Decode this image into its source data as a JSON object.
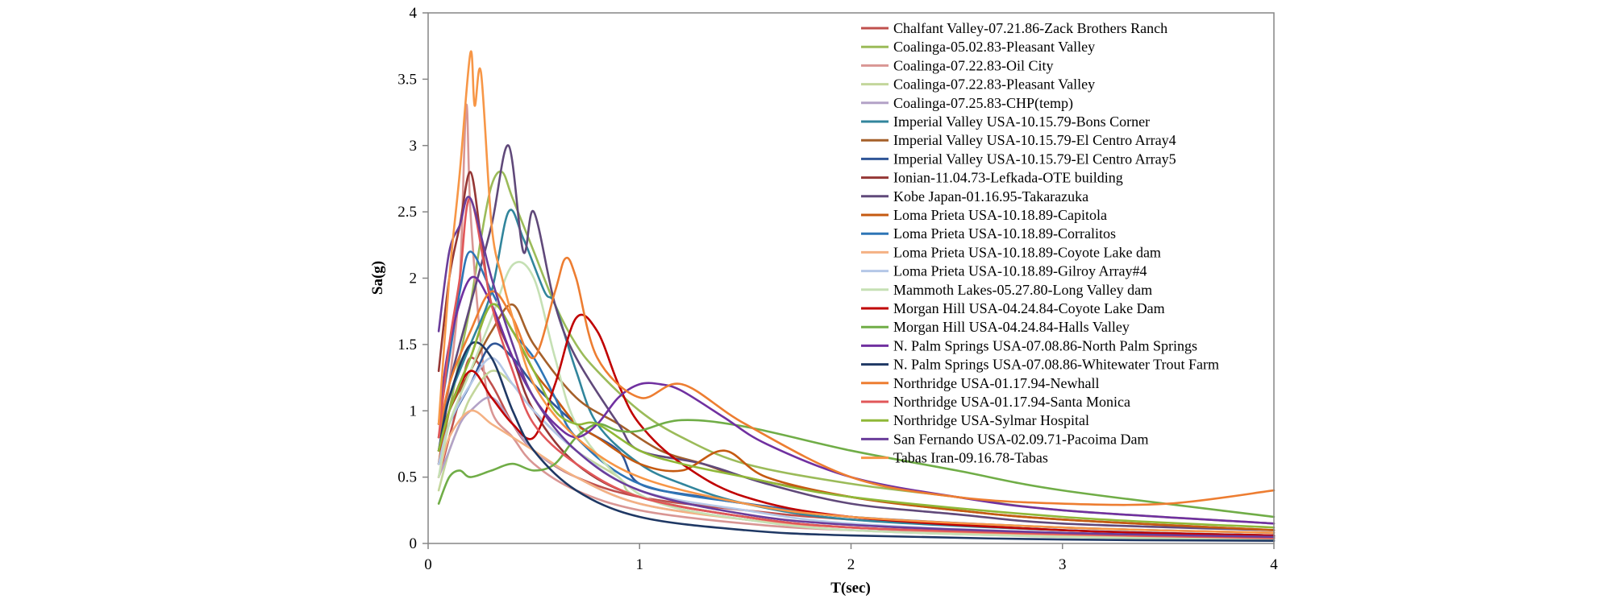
{
  "chart_data": {
    "type": "line",
    "title": "",
    "xlabel": "T(sec)",
    "ylabel": "Sa(g)",
    "xlim": [
      0,
      4
    ],
    "ylim": [
      0,
      4
    ],
    "xticks": [
      0,
      1,
      2,
      3,
      4
    ],
    "yticks": [
      0,
      0.5,
      1,
      1.5,
      2,
      2.5,
      3,
      3.5,
      4
    ],
    "xtick_labels": [
      "0",
      "1",
      "2",
      "3",
      "4"
    ],
    "ytick_labels": [
      "0",
      "0.5",
      "1",
      "1.5",
      "2",
      "2.5",
      "3",
      "3.5",
      "4"
    ],
    "grid": false,
    "legend_position": "top-right",
    "series": [
      {
        "name": "Chalfant Valley-07.21.86-Zack Brothers Ranch",
        "color": "#c0504d",
        "x": [
          0.05,
          0.1,
          0.15,
          0.2,
          0.3,
          0.4,
          0.5,
          0.7,
          1,
          1.5,
          2,
          3,
          4
        ],
        "y": [
          0.5,
          0.8,
          1.1,
          1.4,
          1.2,
          0.9,
          0.7,
          0.5,
          0.35,
          0.25,
          0.18,
          0.1,
          0.06
        ]
      },
      {
        "name": "Coalinga-05.02.83-Pleasant Valley",
        "color": "#9bbb59",
        "x": [
          0.05,
          0.1,
          0.15,
          0.2,
          0.25,
          0.3,
          0.35,
          0.4,
          0.5,
          0.6,
          0.7,
          0.8,
          1,
          1.2,
          1.5,
          2,
          2.5,
          3,
          4
        ],
        "y": [
          0.6,
          1.0,
          1.4,
          1.8,
          2.3,
          2.7,
          2.8,
          2.6,
          2.2,
          1.8,
          1.5,
          1.3,
          1.0,
          0.8,
          0.6,
          0.45,
          0.35,
          0.25,
          0.15
        ]
      },
      {
        "name": "Coalinga-07.22.83-Oil City",
        "color": "#d99694",
        "x": [
          0.05,
          0.1,
          0.15,
          0.18,
          0.2,
          0.25,
          0.3,
          0.4,
          0.5,
          0.7,
          1,
          1.5,
          2,
          3,
          4
        ],
        "y": [
          0.6,
          1.2,
          2.0,
          3.3,
          2.5,
          1.5,
          1.0,
          0.8,
          0.6,
          0.4,
          0.25,
          0.15,
          0.1,
          0.06,
          0.04
        ]
      },
      {
        "name": "Coalinga-07.22.83-Pleasant Valley",
        "color": "#c3d69b",
        "x": [
          0.05,
          0.1,
          0.15,
          0.2,
          0.3,
          0.4,
          0.5,
          0.7,
          0.9,
          1,
          1.5,
          2,
          3,
          4
        ],
        "y": [
          0.4,
          0.7,
          0.9,
          1.1,
          1.3,
          1.2,
          1.0,
          0.7,
          0.5,
          0.35,
          0.2,
          0.12,
          0.07,
          0.04
        ]
      },
      {
        "name": "Coalinga-07.25.83-CHP(temp)",
        "color": "#b3a2c7",
        "x": [
          0.05,
          0.1,
          0.15,
          0.2,
          0.3,
          0.4,
          0.5,
          0.7,
          1,
          1.5,
          2,
          3,
          4
        ],
        "y": [
          0.5,
          0.7,
          0.9,
          1.0,
          1.1,
          0.9,
          0.7,
          0.5,
          0.3,
          0.18,
          0.1,
          0.05,
          0.03
        ]
      },
      {
        "name": "Imperial Valley USA-10.15.79-Bons Corner",
        "color": "#31859c",
        "x": [
          0.05,
          0.1,
          0.2,
          0.3,
          0.38,
          0.45,
          0.55,
          0.6,
          0.7,
          0.8,
          1,
          1.2,
          1.5,
          2,
          3,
          4
        ],
        "y": [
          0.8,
          1.1,
          1.5,
          1.9,
          2.5,
          2.3,
          1.9,
          1.8,
          1.3,
          0.9,
          0.6,
          0.45,
          0.3,
          0.18,
          0.1,
          0.06
        ]
      },
      {
        "name": "Imperial Valley USA-10.15.79-El Centro Array4",
        "color": "#a5602a",
        "x": [
          0.05,
          0.1,
          0.2,
          0.3,
          0.4,
          0.5,
          0.7,
          0.9,
          1.1,
          1.3,
          1.5,
          2,
          2.5,
          3,
          4
        ],
        "y": [
          0.7,
          1.0,
          1.3,
          1.6,
          1.8,
          1.5,
          1.1,
          0.9,
          0.7,
          0.6,
          0.5,
          0.35,
          0.25,
          0.18,
          0.1
        ]
      },
      {
        "name": "Imperial Valley USA-10.15.79-El Centro Array5",
        "color": "#2f5597",
        "x": [
          0.05,
          0.1,
          0.2,
          0.3,
          0.4,
          0.5,
          0.7,
          0.9,
          1,
          1.3,
          1.6,
          2,
          3,
          4
        ],
        "y": [
          0.6,
          0.9,
          1.2,
          1.5,
          1.4,
          1.2,
          0.9,
          0.7,
          0.45,
          0.35,
          0.28,
          0.2,
          0.12,
          0.08
        ]
      },
      {
        "name": "Ionian-11.04.73-Lefkada-OTE building",
        "color": "#953735",
        "x": [
          0.05,
          0.1,
          0.15,
          0.2,
          0.25,
          0.3,
          0.4,
          0.5,
          0.7,
          1,
          1.5,
          2,
          3,
          4
        ],
        "y": [
          1.3,
          2.0,
          2.4,
          2.8,
          2.3,
          1.8,
          1.4,
          1.0,
          0.6,
          0.35,
          0.2,
          0.12,
          0.07,
          0.04
        ]
      },
      {
        "name": "Kobe Japan-01.16.95-Takarazuka",
        "color": "#60497a",
        "x": [
          0.05,
          0.1,
          0.2,
          0.3,
          0.38,
          0.45,
          0.5,
          0.6,
          0.7,
          0.9,
          1,
          1.3,
          1.6,
          2,
          2.5,
          3,
          4
        ],
        "y": [
          0.8,
          1.2,
          1.8,
          2.4,
          3.0,
          2.2,
          2.5,
          1.8,
          1.4,
          0.9,
          0.7,
          0.6,
          0.45,
          0.3,
          0.22,
          0.15,
          0.1
        ]
      },
      {
        "name": "Loma Prieta USA-10.18.89-Capitola",
        "color": "#c55a11",
        "x": [
          0.05,
          0.1,
          0.2,
          0.3,
          0.4,
          0.5,
          0.6,
          0.7,
          0.8,
          1,
          1.2,
          1.4,
          1.6,
          2,
          2.5,
          3,
          4
        ],
        "y": [
          0.6,
          1.0,
          1.4,
          1.8,
          1.6,
          1.3,
          1.1,
          0.9,
          0.8,
          0.6,
          0.55,
          0.7,
          0.5,
          0.35,
          0.25,
          0.18,
          0.1
        ]
      },
      {
        "name": "Loma Prieta USA-10.18.89-Corralitos",
        "color": "#2e75b6",
        "x": [
          0.05,
          0.1,
          0.15,
          0.2,
          0.3,
          0.4,
          0.5,
          0.6,
          0.7,
          1,
          1.5,
          2,
          3,
          4
        ],
        "y": [
          0.9,
          1.4,
          1.9,
          2.2,
          1.9,
          1.6,
          1.4,
          1.1,
          0.8,
          0.45,
          0.3,
          0.2,
          0.1,
          0.06
        ]
      },
      {
        "name": "Loma Prieta USA-10.18.89-Coyote Lake dam",
        "color": "#f4b183",
        "x": [
          0.05,
          0.1,
          0.2,
          0.3,
          0.4,
          0.5,
          0.7,
          1,
          1.5,
          2,
          3,
          4
        ],
        "y": [
          0.5,
          0.8,
          1.0,
          0.9,
          0.8,
          0.7,
          0.5,
          0.3,
          0.18,
          0.12,
          0.06,
          0.04
        ]
      },
      {
        "name": "Loma Prieta USA-10.18.89-Gilroy Array#4",
        "color": "#b4c7e7",
        "x": [
          0.05,
          0.1,
          0.2,
          0.3,
          0.4,
          0.5,
          0.7,
          1,
          1.5,
          2,
          3,
          4
        ],
        "y": [
          0.6,
          0.9,
          1.2,
          1.4,
          1.2,
          1.0,
          0.7,
          0.4,
          0.25,
          0.15,
          0.08,
          0.05
        ]
      },
      {
        "name": "Mammoth Lakes-05.27.80-Long Valley dam",
        "color": "#c5e0b4",
        "x": [
          0.05,
          0.1,
          0.2,
          0.3,
          0.4,
          0.5,
          0.6,
          0.7,
          0.9,
          1.1,
          1.5,
          2,
          3,
          4
        ],
        "y": [
          0.5,
          0.9,
          1.3,
          1.7,
          2.1,
          2.0,
          1.4,
          0.9,
          0.5,
          0.3,
          0.18,
          0.1,
          0.05,
          0.03
        ]
      },
      {
        "name": "Morgan Hill USA-04.24.84-Coyote Lake Dam",
        "color": "#c00000",
        "x": [
          0.05,
          0.1,
          0.2,
          0.3,
          0.4,
          0.5,
          0.6,
          0.7,
          0.8,
          0.9,
          1,
          1.2,
          1.5,
          2,
          3,
          4
        ],
        "y": [
          0.7,
          1.0,
          1.3,
          1.1,
          0.9,
          0.8,
          1.2,
          1.7,
          1.6,
          1.2,
          0.9,
          0.6,
          0.35,
          0.2,
          0.1,
          0.06
        ]
      },
      {
        "name": "Morgan Hill USA-04.24.84-Halls Valley",
        "color": "#70ad47",
        "x": [
          0.05,
          0.1,
          0.15,
          0.2,
          0.3,
          0.4,
          0.5,
          0.6,
          0.7,
          0.8,
          0.9,
          1,
          1.2,
          1.5,
          2,
          2.5,
          3,
          4
        ],
        "y": [
          0.3,
          0.5,
          0.55,
          0.5,
          0.55,
          0.6,
          0.55,
          0.6,
          0.8,
          0.9,
          0.85,
          0.85,
          0.93,
          0.88,
          0.7,
          0.55,
          0.4,
          0.2
        ]
      },
      {
        "name": "N. Palm Springs USA-07.08.86-North Palm Springs",
        "color": "#7030a0",
        "x": [
          0.05,
          0.1,
          0.2,
          0.3,
          0.4,
          0.5,
          0.6,
          0.7,
          0.8,
          0.9,
          1,
          1.1,
          1.2,
          1.4,
          1.6,
          2,
          2.5,
          3,
          4
        ],
        "y": [
          0.9,
          1.5,
          2.0,
          1.8,
          1.4,
          1.1,
          0.9,
          0.8,
          0.9,
          1.1,
          1.2,
          1.2,
          1.15,
          0.95,
          0.75,
          0.5,
          0.35,
          0.25,
          0.15
        ]
      },
      {
        "name": "N. Palm Springs USA-07.08.86-Whitewater Trout Farm",
        "color": "#1f3864",
        "x": [
          0.05,
          0.1,
          0.2,
          0.3,
          0.4,
          0.5,
          0.7,
          1,
          1.5,
          2,
          3,
          4
        ],
        "y": [
          0.7,
          1.1,
          1.5,
          1.4,
          1.0,
          0.7,
          0.4,
          0.2,
          0.1,
          0.06,
          0.03,
          0.02
        ]
      },
      {
        "name": "Northridge USA-01.17.94-Newhall",
        "color": "#ed7d31",
        "x": [
          0.05,
          0.1,
          0.2,
          0.3,
          0.4,
          0.5,
          0.6,
          0.65,
          0.7,
          0.8,
          1,
          1.2,
          1.5,
          2,
          2.5,
          3,
          3.5,
          4
        ],
        "y": [
          0.8,
          1.2,
          1.6,
          1.9,
          1.7,
          1.4,
          1.9,
          2.15,
          2.0,
          1.4,
          1.1,
          1.2,
          0.9,
          0.5,
          0.35,
          0.3,
          0.3,
          0.4
        ]
      },
      {
        "name": "Northridge USA-01.17.94-Santa Monica",
        "color": "#e15759",
        "x": [
          0.05,
          0.1,
          0.15,
          0.2,
          0.3,
          0.4,
          0.5,
          0.7,
          1,
          1.5,
          2,
          3,
          4
        ],
        "y": [
          0.8,
          1.5,
          2.0,
          2.6,
          1.8,
          1.3,
          0.9,
          0.6,
          0.35,
          0.2,
          0.12,
          0.07,
          0.04
        ]
      },
      {
        "name": "Northridge USA-Sylmar Hospital",
        "color": "#8fb838",
        "x": [
          0.05,
          0.1,
          0.2,
          0.3,
          0.4,
          0.5,
          0.6,
          0.7,
          0.8,
          1,
          1.2,
          1.5,
          2,
          3,
          4
        ],
        "y": [
          0.7,
          1.0,
          1.4,
          1.8,
          1.6,
          1.3,
          1.0,
          0.9,
          0.9,
          0.7,
          0.6,
          0.5,
          0.35,
          0.2,
          0.12
        ]
      },
      {
        "name": "San Fernando USA-02.09.71-Pacoima Dam",
        "color": "#6a3d9a",
        "x": [
          0.05,
          0.1,
          0.15,
          0.2,
          0.3,
          0.4,
          0.5,
          0.7,
          1,
          1.5,
          2,
          3,
          4
        ],
        "y": [
          1.6,
          2.2,
          2.4,
          2.6,
          2.0,
          1.5,
          1.1,
          0.7,
          0.4,
          0.22,
          0.14,
          0.08,
          0.05
        ]
      },
      {
        "name": "Tabas Iran-09.16.78-Tabas",
        "color": "#f79646",
        "x": [
          0.05,
          0.1,
          0.15,
          0.2,
          0.22,
          0.25,
          0.3,
          0.35,
          0.4,
          0.5,
          0.7,
          1,
          1.5,
          2,
          3,
          4
        ],
        "y": [
          0.9,
          2.0,
          2.8,
          3.7,
          3.3,
          3.55,
          2.4,
          2.0,
          1.7,
          1.2,
          0.8,
          0.5,
          0.3,
          0.2,
          0.12,
          0.08
        ]
      }
    ]
  }
}
